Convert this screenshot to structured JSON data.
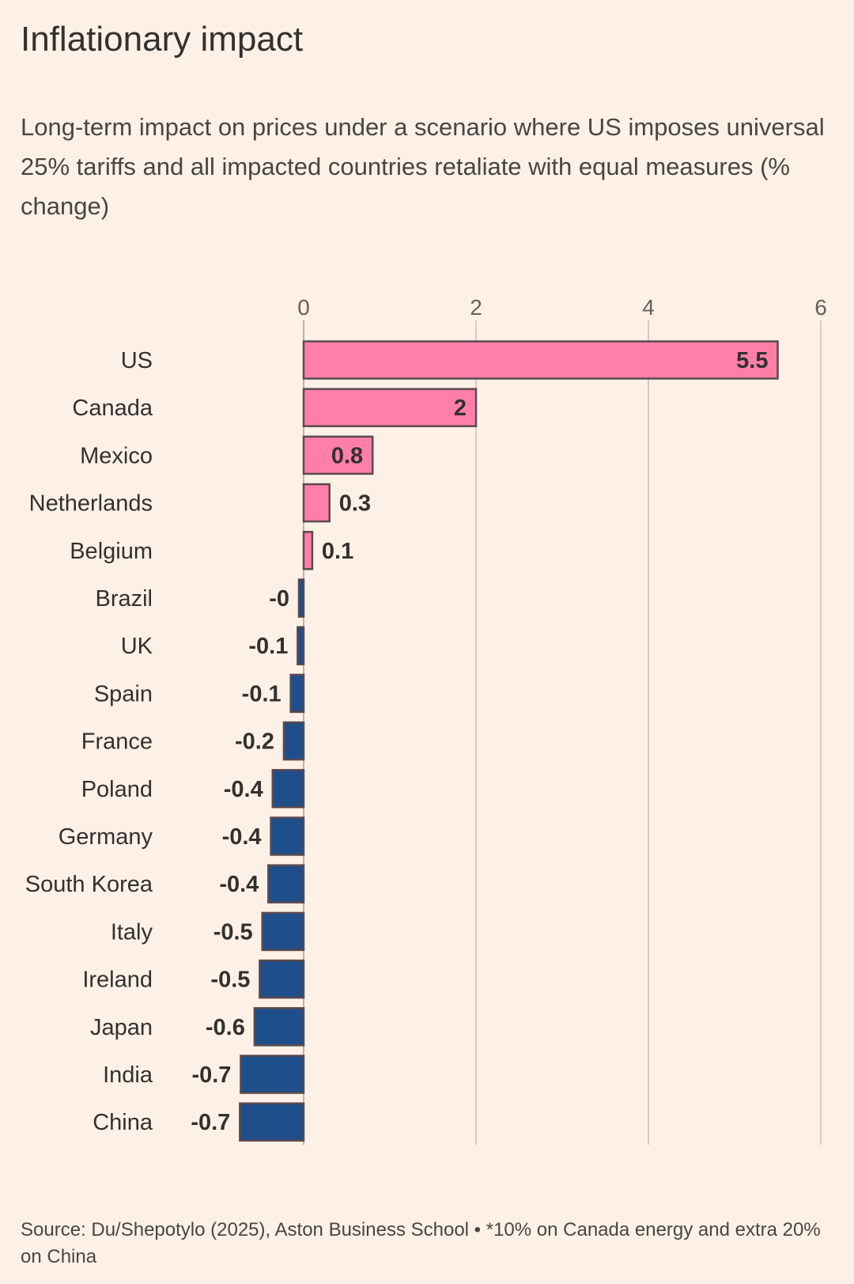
{
  "title": "Inflationary impact",
  "subtitle": "Long-term impact on prices under a scenario where US imposes universal 25% tariffs and all impacted countries retaliate with equal measures (% change)",
  "source": "Source: Du/Shepotylo (2025), Aston Business School • *10% on Canada energy and extra 20% on China",
  "colors": {
    "background": "#fdf1e7",
    "positive": "#ff7fa8",
    "negative": "#1f4f8a",
    "bar_stroke": "#5a4a4e",
    "grid": "#c9bdb5",
    "text": "#33302e"
  },
  "chart_data": {
    "type": "bar",
    "orientation": "horizontal",
    "title": "Inflationary impact",
    "subtitle": "Long-term impact on prices under a scenario where US imposes universal 25% tariffs and all impacted countries retaliate with equal measures (% change)",
    "xlim": [
      -0.75,
      6
    ],
    "xticks": [
      0,
      2,
      4,
      6
    ],
    "tick_position": "top",
    "grid": true,
    "categories": [
      "US",
      "Canada",
      "Mexico",
      "Netherlands",
      "Belgium",
      "Brazil",
      "UK",
      "Spain",
      "France",
      "Poland",
      "Germany",
      "South Korea",
      "Italy",
      "Ireland",
      "Japan",
      "India",
      "China"
    ],
    "values": [
      5.5,
      2,
      0.8,
      0.3,
      0.1,
      -0.04,
      -0.07,
      -0.15,
      -0.23,
      -0.36,
      -0.38,
      -0.41,
      -0.48,
      -0.51,
      -0.57,
      -0.73,
      -0.74
    ],
    "data_labels": [
      "5.5",
      "2",
      "0.8",
      "0.3",
      "0.1",
      "-0",
      "-0.1",
      "-0.1",
      "-0.2",
      "-0.4",
      "-0.4",
      "-0.4",
      "-0.5",
      "-0.5",
      "-0.6",
      "-0.7",
      "-0.7"
    ]
  }
}
